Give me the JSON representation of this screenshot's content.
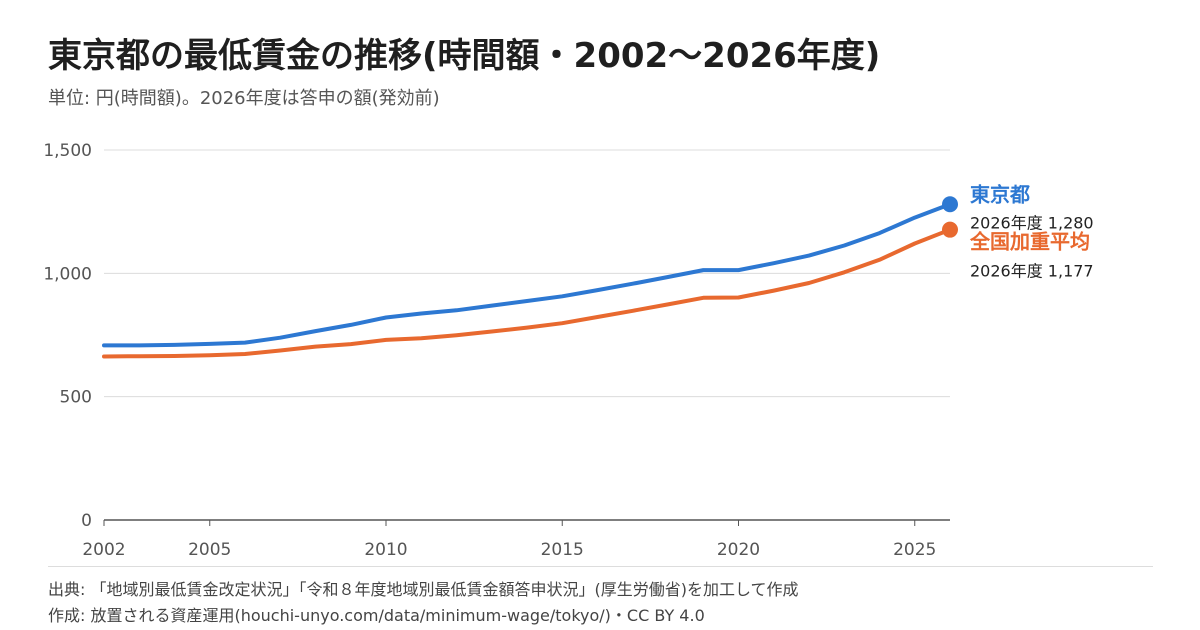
{
  "header": {
    "title": "東京都の最低賃金の推移(時間額・2002〜2026年度)",
    "subtitle": "単位: 円(時間額)。2026年度は答申の額(発効前)"
  },
  "footer": {
    "source": "出典: 「地域別最低賃金改定状況」「令和８年度地域別最低賃金額答申状況」(厚生労働省)を加工して作成",
    "credit": "作成: 放置される資産運用(houchi-unyo.com/data/minimum-wage/tokyo/)・CC BY 4.0"
  },
  "chart_data": {
    "type": "line",
    "title": "東京都の最低賃金の推移(時間額・2002〜2026年度)",
    "subtitle": "単位: 円(時間額)。2026年度は答申の額(発効前)",
    "x": [
      2002,
      2003,
      2004,
      2005,
      2006,
      2007,
      2008,
      2009,
      2010,
      2011,
      2012,
      2013,
      2014,
      2015,
      2016,
      2017,
      2018,
      2019,
      2020,
      2021,
      2022,
      2023,
      2024,
      2025,
      2026
    ],
    "x_ticks": [
      2002,
      2005,
      2010,
      2015,
      2020,
      2025
    ],
    "y_ticks": [
      0,
      500,
      1000,
      1500
    ],
    "y_tick_labels": [
      "0",
      "500",
      "1,000",
      "1,500"
    ],
    "ylim": [
      0,
      1500
    ],
    "xlim": [
      2002,
      2026
    ],
    "grid": "horizontal",
    "series": [
      {
        "name": "東京都",
        "color": "#2d78d2",
        "values": [
          708,
          708,
          710,
          714,
          719,
          739,
          766,
          791,
          821,
          837,
          850,
          869,
          888,
          907,
          932,
          958,
          985,
          1013,
          1013,
          1041,
          1072,
          1113,
          1163,
          1226,
          1280
        ],
        "end_label": "2026年度 1,280"
      },
      {
        "name": "全国加重平均",
        "color": "#e8692f",
        "values": [
          663,
          664,
          665,
          668,
          673,
          687,
          703,
          713,
          730,
          737,
          749,
          764,
          780,
          798,
          823,
          848,
          874,
          901,
          902,
          930,
          961,
          1004,
          1055,
          1121,
          1177
        ],
        "end_label": "2026年度 1,177"
      }
    ]
  }
}
